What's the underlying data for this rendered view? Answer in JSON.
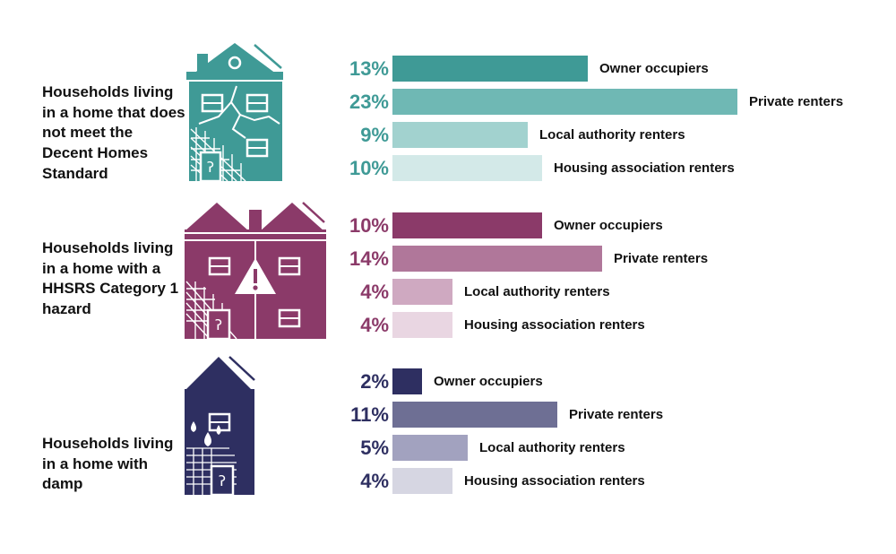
{
  "chart_data": {
    "type": "bar",
    "orientation": "horizontal",
    "value_unit": "%",
    "categories": [
      "Owner occupiers",
      "Private renters",
      "Local authority renters",
      "Housing association renters"
    ],
    "groups": [
      {
        "title": "Households living in a home that does not meet the Decent Homes Standard",
        "icon": "cracked-house-icon",
        "color": "#3f9a96",
        "bar_colors": [
          "#3f9a96",
          "#6fb8b4",
          "#a2d2cf",
          "#d3e9e8"
        ],
        "values": [
          13,
          23,
          9,
          10
        ],
        "value_labels": [
          "13%",
          "23%",
          "9%",
          "10%"
        ]
      },
      {
        "title": "Households living in a home with a HHSRS Category 1 hazard",
        "icon": "hazard-house-icon",
        "color": "#8b3a69",
        "bar_colors": [
          "#8b3a69",
          "#b0779a",
          "#cfa9c1",
          "#e9d6e2"
        ],
        "values": [
          10,
          14,
          4,
          4
        ],
        "value_labels": [
          "10%",
          "14%",
          "4%",
          "4%"
        ]
      },
      {
        "title": "Households living in a home with damp",
        "icon": "damp-house-icon",
        "color": "#2e2f61",
        "bar_colors": [
          "#2e2f61",
          "#6e6f94",
          "#a2a2bf",
          "#d6d6e2"
        ],
        "values": [
          2,
          11,
          5,
          4
        ],
        "value_labels": [
          "2%",
          "11%",
          "5%",
          "4%"
        ]
      }
    ],
    "xlim": [
      0,
      23
    ],
    "grid": false,
    "legend": "none"
  }
}
